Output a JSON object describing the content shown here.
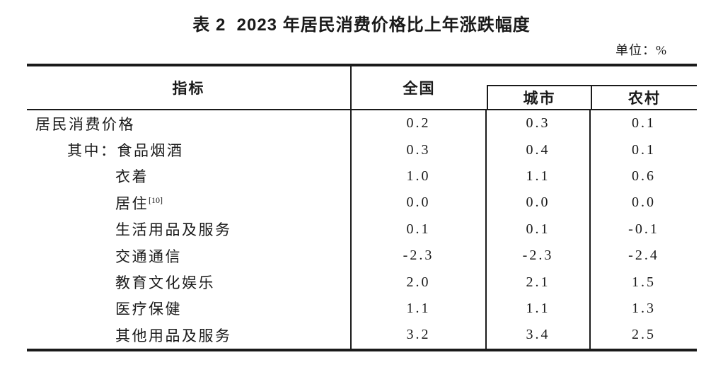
{
  "title": "表 2  2023 年居民消费价格比上年涨跌幅度",
  "unit_label": "单位：%",
  "colors": {
    "text": "#1a1a1a",
    "line": "#1a1a1a",
    "background": "#ffffff"
  },
  "table": {
    "col_indicator": "指标",
    "col_national": "全国",
    "col_urban": "城市",
    "col_rural": "农村",
    "rows": [
      {
        "label": "居民消费价格",
        "sup": "",
        "national": "0.2",
        "urban": "0.3",
        "rural": "0.1"
      },
      {
        "label": "其中：食品烟酒",
        "sup": "",
        "national": "0.3",
        "urban": "0.4",
        "rural": "0.1"
      },
      {
        "label": "衣着",
        "sup": "",
        "national": "1.0",
        "urban": "1.1",
        "rural": "0.6"
      },
      {
        "label": "居住",
        "sup": "[10]",
        "national": "0.0",
        "urban": "0.0",
        "rural": "0.0"
      },
      {
        "label": "生活用品及服务",
        "sup": "",
        "national": "0.1",
        "urban": "0.1",
        "rural": "-0.1"
      },
      {
        "label": "交通通信",
        "sup": "",
        "national": "-2.3",
        "urban": "-2.3",
        "rural": "-2.4"
      },
      {
        "label": "教育文化娱乐",
        "sup": "",
        "national": "2.0",
        "urban": "2.1",
        "rural": "1.5"
      },
      {
        "label": "医疗保健",
        "sup": "",
        "national": "1.1",
        "urban": "1.1",
        "rural": "1.3"
      },
      {
        "label": "其他用品及服务",
        "sup": "",
        "national": "3.2",
        "urban": "3.4",
        "rural": "2.5"
      }
    ]
  }
}
